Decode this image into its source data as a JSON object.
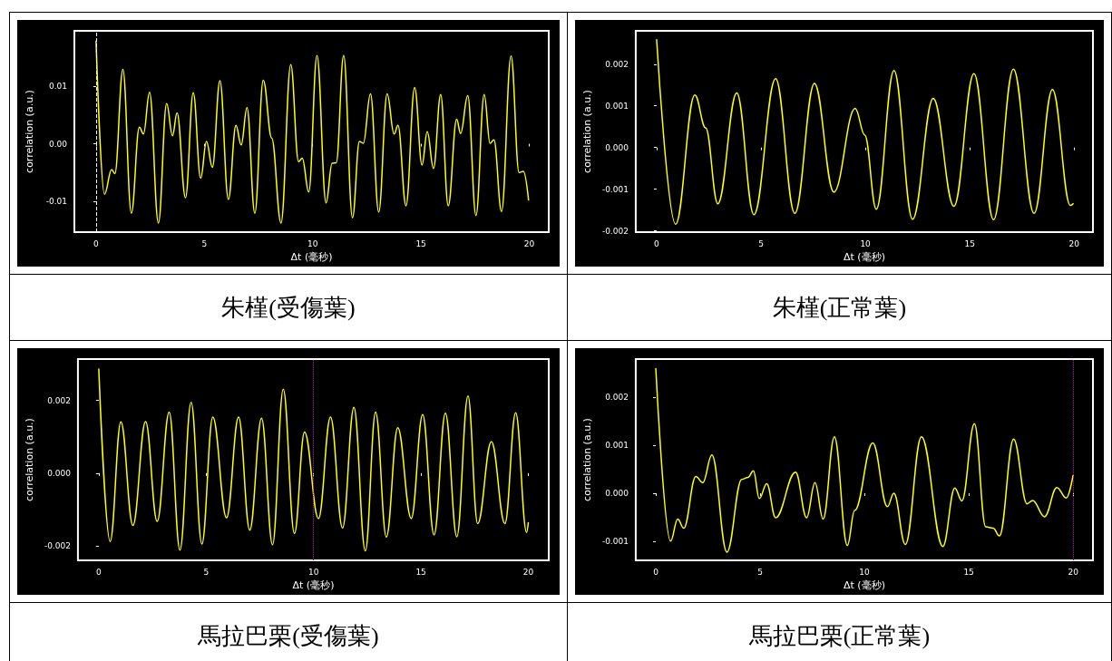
{
  "chart_data": [
    {
      "type": "line",
      "title": "朱槿(受傷葉)",
      "xlabel": "Δt (毫秒)",
      "ylabel": "correlation (a.u.)",
      "xlim": [
        -1,
        20.9
      ],
      "ylim": [
        -0.0154,
        0.0197
      ],
      "xticks": [
        0,
        5,
        10,
        15,
        20
      ],
      "yticks": [
        {
          "value": -0.01,
          "label": "-0.01"
        },
        {
          "value": 0,
          "label": "0.00"
        },
        0.01
      ],
      "grid": false,
      "marker": "none",
      "line_style": "solid",
      "ref_lines": [
        {
          "axis": "x",
          "value": 0,
          "color": "#ffffff",
          "line_style": "dashed"
        }
      ],
      "series": [
        {
          "color": "#ffff00",
          "x": [
            0,
            0.39,
            0.72,
            0.87,
            1.24,
            1.63,
            2.0,
            2.19,
            2.47,
            2.88,
            3.26,
            3.53,
            3.74,
            4.13,
            4.49,
            4.83,
            5.1,
            5.37,
            5.72,
            6.11,
            6.46,
            6.7,
            6.97,
            7.33,
            7.72,
            8.11,
            8.54,
            8.99,
            9.35,
            9.52,
            9.82,
            10.2,
            10.62,
            10.9,
            11.09,
            11.43,
            11.84,
            12.16,
            12.34,
            12.67,
            13.05,
            13.44,
            13.76,
            13.94,
            14.31,
            14.71,
            15.05,
            15.29,
            15.58,
            15.91,
            16.26,
            16.65,
            16.83,
            17.16,
            17.54,
            17.92,
            18.19,
            18.37,
            18.72,
            19.16,
            19.53,
            19.73,
            19.97
          ],
          "values": [
            0.018,
            -0.0088,
            -0.0045,
            -0.0052,
            0.013,
            -0.0121,
            0.0029,
            0.0017,
            0.009,
            -0.0138,
            0.007,
            0.0014,
            0.0054,
            -0.0094,
            0.0089,
            -0.006,
            0.0004,
            -0.0041,
            0.011,
            -0.0097,
            0.0032,
            -0.0002,
            0.0063,
            -0.0121,
            0.0111,
            0.001,
            -0.0138,
            0.0138,
            -0.0031,
            -0.0025,
            -0.0084,
            0.0154,
            -0.0103,
            -0.0034,
            -0.0033,
            0.0154,
            -0.0129,
            0.0004,
            0.0001,
            0.0087,
            -0.0119,
            0.0087,
            0.0017,
            0.0032,
            -0.0108,
            0.0098,
            -0.0037,
            0.0021,
            -0.0043,
            0.0086,
            -0.0108,
            0.0043,
            0.0018,
            0.0084,
            -0.0125,
            0.0086,
            0.0001,
            0.0007,
            -0.0118,
            0.0153,
            -0.005,
            -0.0048,
            -0.0099
          ]
        }
      ]
    },
    {
      "type": "line",
      "title": "朱槿(正常葉)",
      "xlabel": "Δt (毫秒)",
      "ylabel": "correlation (a.u.)",
      "xlim": [
        -1,
        20.9
      ],
      "ylim": [
        -0.00203,
        0.0028
      ],
      "xticks": [
        0,
        5,
        10,
        15,
        20
      ],
      "yticks": [
        {
          "value": -0.002,
          "label": "-0.002"
        },
        {
          "value": -0.001,
          "label": "-0.001"
        },
        {
          "value": 0,
          "label": "0.000"
        },
        0.001,
        0.002
      ],
      "grid": false,
      "marker": "none",
      "line_style": "solid",
      "series": [
        {
          "color": "#ffff00",
          "x": [
            0,
            0.91,
            1.83,
            2.35,
            2.93,
            3.84,
            4.66,
            5.7,
            6.62,
            7.56,
            8.49,
            9.51,
            9.97,
            10.52,
            11.37,
            12.26,
            13.25,
            14.24,
            15.2,
            16.14,
            17.09,
            18.08,
            18.96,
            19.82,
            19.97
          ],
          "values": [
            0.0026,
            -0.00184,
            0.00126,
            0.00047,
            -0.00135,
            0.00131,
            -0.00161,
            0.00165,
            -0.00158,
            0.00154,
            -0.00107,
            0.00094,
            0.0003,
            -0.00148,
            0.00185,
            -0.00172,
            0.00118,
            -0.00141,
            0.00177,
            -0.00173,
            0.00188,
            -0.00158,
            0.00139,
            -0.00139,
            -0.00134
          ]
        }
      ]
    },
    {
      "type": "line",
      "title": "馬拉巴栗(受傷葉)",
      "xlabel": "Δt (毫秒)",
      "ylabel": "correlation (a.u.)",
      "xlim": [
        -0.97,
        20.95
      ],
      "ylim": [
        -0.0024,
        0.00314
      ],
      "xticks": [
        0,
        5,
        10,
        15,
        20
      ],
      "yticks": [
        {
          "value": -0.002,
          "label": "-0.002"
        },
        {
          "value": 0,
          "label": "0.000"
        },
        0.002
      ],
      "grid": false,
      "marker": "none",
      "line_style": "solid",
      "ref_lines": [
        {
          "axis": "x",
          "value": 10,
          "color": "#cc00cc",
          "line_style": "dotted"
        }
      ],
      "series": [
        {
          "color": "#ffff00",
          "x": [
            0,
            0.53,
            1.03,
            1.59,
            2.18,
            2.72,
            3.28,
            3.78,
            4.3,
            4.8,
            5.31,
            5.95,
            6.51,
            7.03,
            7.58,
            8.09,
            8.59,
            9.11,
            9.58,
            10.23,
            10.79,
            11.35,
            11.88,
            12.41,
            12.89,
            13.39,
            13.92,
            14.55,
            15.08,
            15.61,
            16.14,
            16.67,
            17.19,
            17.64,
            18.28,
            18.91,
            19.41,
            19.92,
            20.0
          ],
          "values": [
            0.00288,
            -0.00188,
            0.00141,
            -0.00144,
            0.00142,
            -0.00133,
            0.00168,
            -0.00212,
            0.00195,
            -0.00195,
            0.00154,
            -0.00123,
            0.00154,
            -0.00157,
            0.00151,
            -0.00197,
            0.00231,
            -0.00166,
            0.00113,
            -0.00125,
            0.00154,
            -0.00151,
            0.00181,
            -0.00214,
            0.00168,
            -0.00176,
            0.00125,
            -0.00125,
            0.00161,
            -0.0017,
            0.00165,
            -0.00175,
            0.00212,
            -0.00139,
            0.00087,
            -0.00139,
            0.00166,
            -0.00163,
            -0.00135
          ]
        }
      ]
    },
    {
      "type": "line",
      "title": "馬拉巴栗(正常葉)",
      "xlabel": "Δt (毫秒)",
      "ylabel": "correlation (a.u.)",
      "xlim": [
        -0.96,
        20.95
      ],
      "ylim": [
        -0.0014,
        0.0028
      ],
      "xticks": [
        0,
        5,
        10,
        15,
        20
      ],
      "yticks": [
        {
          "value": -0.001,
          "label": "-0.001"
        },
        {
          "value": 0,
          "label": "0.000"
        },
        0.001,
        0.002
      ],
      "grid": false,
      "marker": "none",
      "line_style": "solid",
      "ref_lines": [
        {
          "axis": "x",
          "value": 20,
          "color": "#cc00cc",
          "line_style": "dotted"
        }
      ],
      "series": [
        {
          "color": "#ffff00",
          "x": [
            0,
            0.71,
            1.05,
            1.34,
            1.92,
            2.25,
            2.69,
            3.41,
            4.12,
            4.42,
            4.68,
            4.96,
            5.32,
            5.74,
            6.7,
            7.23,
            7.63,
            8.02,
            8.56,
            9.18,
            9.53,
            10.4,
            11.1,
            11.41,
            11.96,
            12.73,
            13.76,
            14.33,
            14.67,
            15.27,
            15.81,
            16.17,
            16.47,
            17.15,
            17.79,
            18.06,
            18.63,
            19.22,
            19.67,
            20.0
          ],
          "values": [
            0.00261,
            -0.001,
            -0.00054,
            -0.00073,
            0.00035,
            0.00022,
            0.0008,
            -0.00123,
            0.00029,
            0.00033,
            0.00047,
            -0.00011,
            0.0002,
            -0.00051,
            0.00044,
            -0.00051,
            0.00022,
            -0.00054,
            0.00118,
            -0.00109,
            -0.00036,
            0.00105,
            -0.00028,
            0,
            -0.00107,
            0.00118,
            -0.00111,
            0.00011,
            -0.00016,
            0.00145,
            -0.0007,
            -0.00073,
            -0.00089,
            0.00113,
            -0.00022,
            -0.00015,
            -0.00049,
            0.00012,
            -0.0001,
            0.00038
          ]
        }
      ]
    }
  ]
}
